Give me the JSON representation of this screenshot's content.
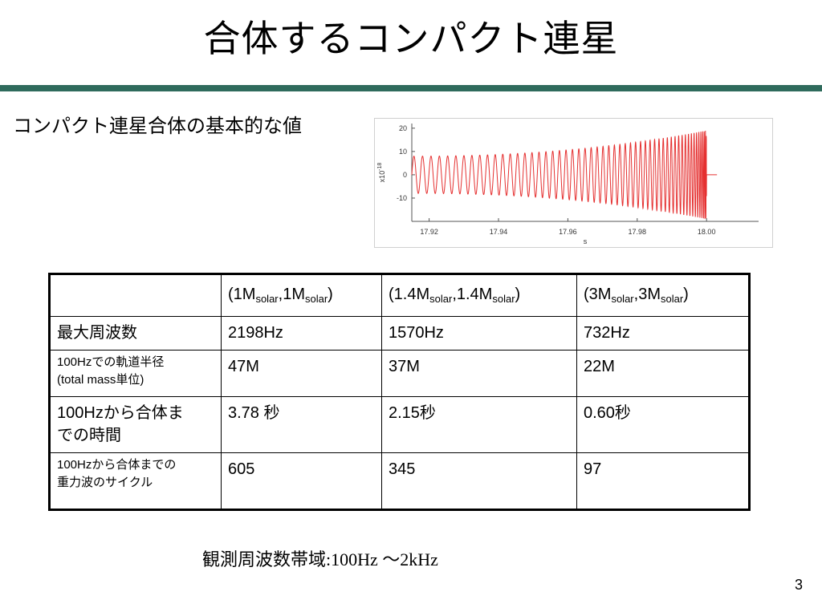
{
  "slide": {
    "title": "合体するコンパクト連星",
    "subtitle": "コンパクト連星合体の基本的な値",
    "page_number": "3",
    "band_label": "観測周波数帯域",
    "band_sep": ":",
    "band_value": "100Hz ～2kHz",
    "rule_color": "#2f6b5c"
  },
  "table": {
    "head": [
      {
        "p1": "(1M",
        "s1": "solar",
        "p2": ",1M",
        "s2": "solar",
        "p3": ")"
      },
      {
        "p1": "(1.4M",
        "s1": "solar",
        "p2": ",1.4M",
        "s2": "solar",
        "p3": ")"
      },
      {
        "p1": "(3M",
        "s1": "solar",
        "p2": ",3M",
        "s2": "solar",
        "p3": ")"
      }
    ],
    "rows": [
      {
        "label_l1": "最大周波数",
        "label_l2": "",
        "values": [
          "2198Hz",
          "1570Hz",
          "732Hz"
        ]
      },
      {
        "label_l1": "100Hzでの軌道半径",
        "label_l2": "(total mass単位)",
        "values": [
          "47M",
          "37M",
          "22M"
        ]
      },
      {
        "label_l1": "100Hzから合体ま",
        "label_l2": "での時間",
        "values": [
          "3.78 秒",
          "2.15秒",
          "0.60秒"
        ]
      },
      {
        "label_l1": "100Hzから合体までの",
        "label_l2": "重力波のサイクル",
        "values": [
          "605",
          "345",
          "97"
        ]
      }
    ]
  },
  "chart_data": {
    "type": "line",
    "title": "",
    "xlabel": "s",
    "ylabel": "x10",
    "ylabel_exp": "-18",
    "xlim": [
      17.915,
      18.015
    ],
    "ylim": [
      -20,
      22
    ],
    "x_ticks": [
      "17.92",
      "17.94",
      "17.96",
      "17.98",
      "18.00"
    ],
    "y_ticks": [
      "20",
      "10",
      "0",
      "-10"
    ],
    "series": [
      {
        "color": "#e53030",
        "waveform": "chirp",
        "x_start": 17.915,
        "x_merge": 18.0,
        "x_end": 18.003,
        "amplitude_start": 8,
        "amplitude_merge": 19,
        "cycles": 55,
        "post_merge_value": 0
      }
    ]
  }
}
